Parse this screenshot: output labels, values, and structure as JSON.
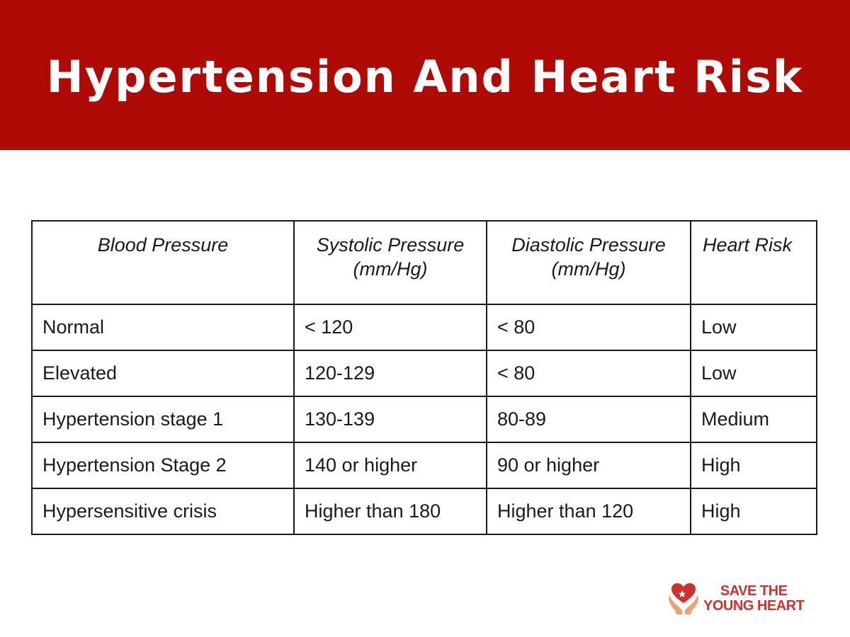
{
  "colors": {
    "header_background": "#b00a06",
    "title_text": "#ffffff",
    "brand_red": "#d0312d",
    "brand_orange": "#f0a070"
  },
  "header": {
    "title": "Hypertension And Heart Risk"
  },
  "table": {
    "headers": [
      [
        "Blood Pressure"
      ],
      [
        "Systolic Pressure",
        "(mm/Hg)"
      ],
      [
        "Diastolic Pressure",
        "(mm/Hg)"
      ],
      [
        "Heart Risk"
      ]
    ],
    "rows": [
      [
        "Normal",
        "< 120",
        "< 80",
        "Low"
      ],
      [
        "Elevated",
        "120-129",
        "< 80",
        "Low"
      ],
      [
        "Hypertension stage 1",
        "130-139",
        "80-89",
        "Medium"
      ],
      [
        "Hypertension Stage 2",
        "140 or higher",
        "90 or higher",
        "High"
      ],
      [
        "Hypersensitive crisis",
        "Higher than 180",
        "Higher than 120",
        "High"
      ]
    ]
  },
  "brand": {
    "logo_icon": "heart-in-hands-icon",
    "line1": "SAVE THE",
    "line2": "YOUNG HEART"
  }
}
